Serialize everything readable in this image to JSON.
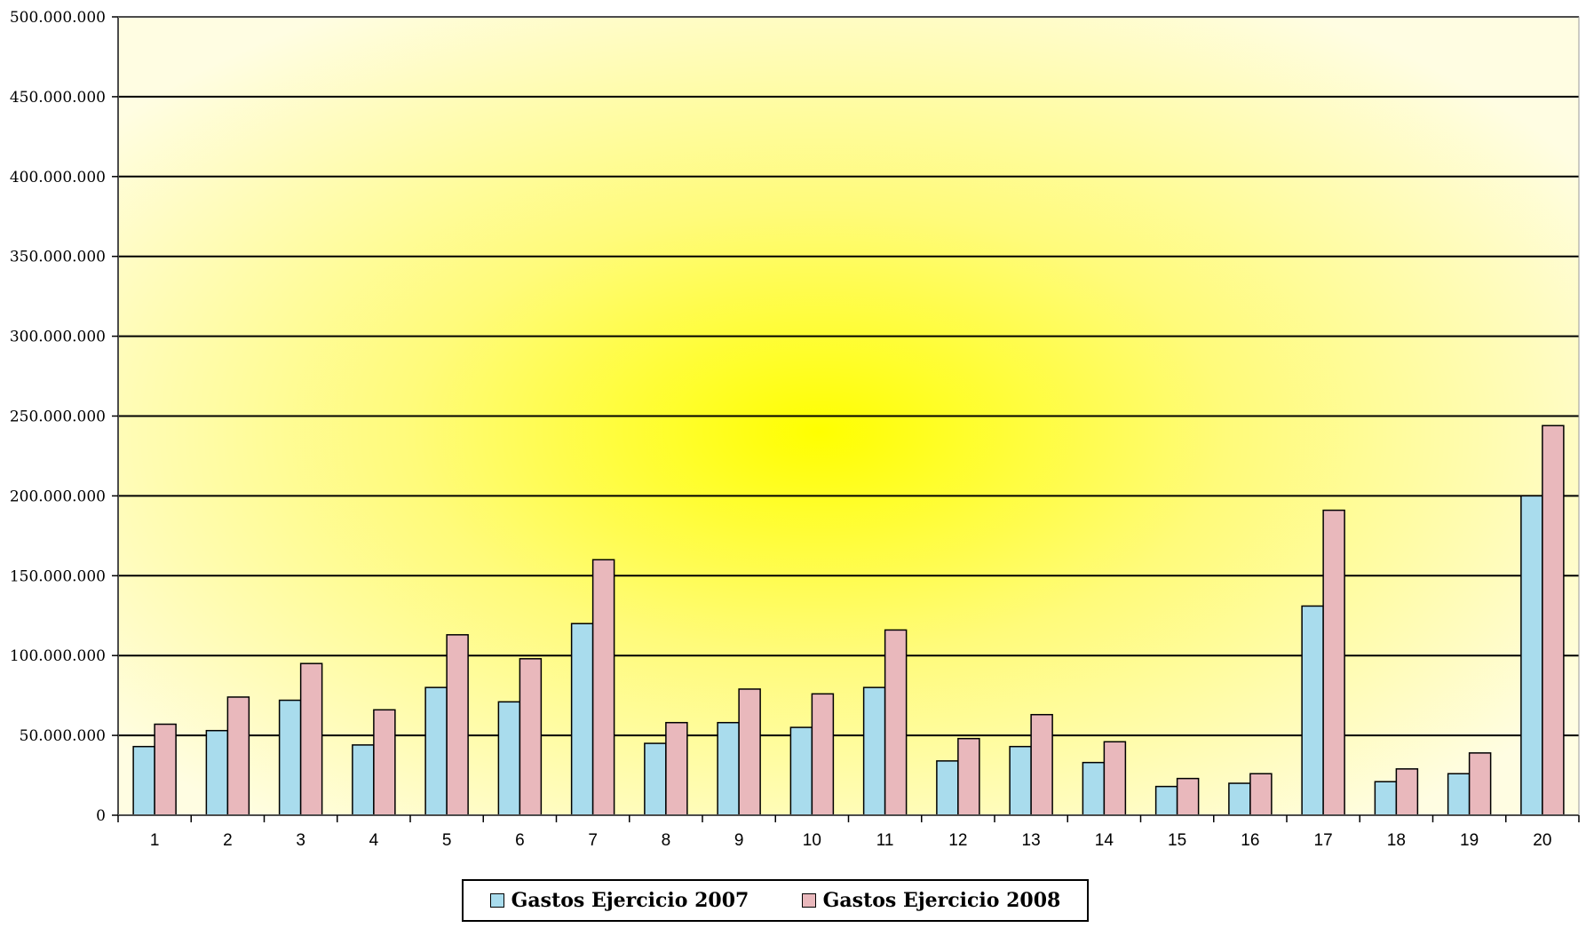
{
  "chart_data": {
    "type": "bar",
    "title": "",
    "xlabel": "",
    "ylabel": "",
    "ylim": [
      0,
      500000000
    ],
    "ytick_values": [
      0,
      50000000,
      100000000,
      150000000,
      200000000,
      250000000,
      300000000,
      350000000,
      400000000,
      450000000,
      500000000
    ],
    "ytick_labels": [
      "0",
      "50.000.000",
      "100.000.000",
      "150.000.000",
      "200.000.000",
      "250.000.000",
      "300.000.000",
      "350.000.000",
      "400.000.000",
      "450.000.000",
      "500.000.000"
    ],
    "categories": [
      "1",
      "2",
      "3",
      "4",
      "5",
      "6",
      "7",
      "8",
      "9",
      "10",
      "11",
      "12",
      "13",
      "14",
      "15",
      "16",
      "17",
      "18",
      "19",
      "20"
    ],
    "grid": true,
    "legend_position": "bottom",
    "series": [
      {
        "name": "Gastos Ejercicio 2007",
        "color": "#a9dced",
        "values": [
          43000000,
          53000000,
          72000000,
          44000000,
          80000000,
          71000000,
          120000000,
          45000000,
          58000000,
          55000000,
          80000000,
          34000000,
          43000000,
          33000000,
          18000000,
          20000000,
          131000000,
          21000000,
          26000000,
          200000000
        ]
      },
      {
        "name": "Gastos Ejercicio 2008",
        "color": "#e9b8bc",
        "values": [
          57000000,
          74000000,
          95000000,
          66000000,
          113000000,
          98000000,
          160000000,
          58000000,
          79000000,
          76000000,
          116000000,
          48000000,
          63000000,
          46000000,
          23000000,
          26000000,
          191000000,
          29000000,
          39000000,
          244000000
        ]
      }
    ]
  }
}
